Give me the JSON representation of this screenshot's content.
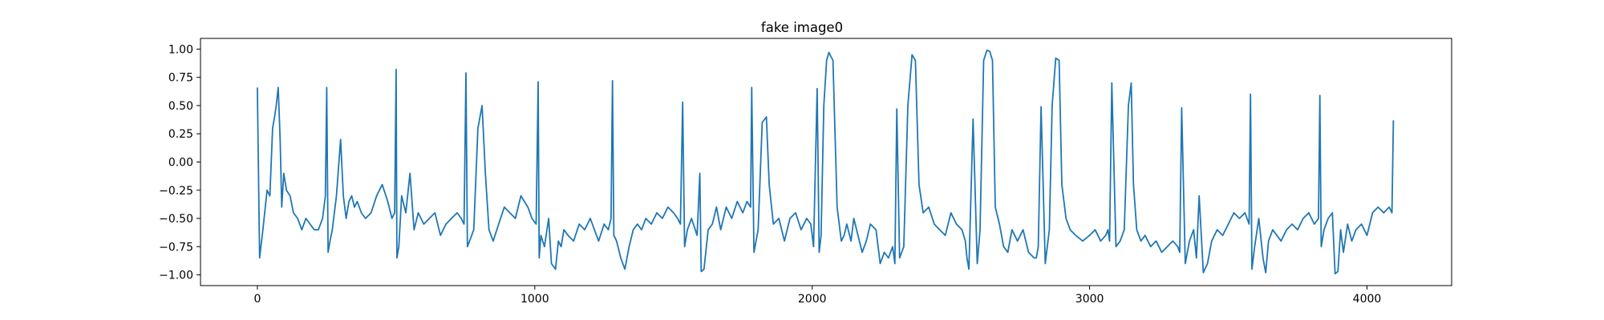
{
  "chart_data": {
    "type": "line",
    "title": "fake image0",
    "xlabel": "",
    "ylabel": "",
    "xlim": [
      -205,
      4305
    ],
    "ylim": [
      -1.095,
      1.095
    ],
    "xticks": [
      0,
      1000,
      2000,
      3000,
      4000
    ],
    "xtick_labels": [
      "0",
      "1000",
      "2000",
      "3000",
      "4000"
    ],
    "yticks": [
      -1.0,
      -0.75,
      -0.5,
      -0.25,
      0.0,
      0.25,
      0.5,
      0.75,
      1.0
    ],
    "ytick_labels": [
      "−1.00",
      "−0.75",
      "−0.50",
      "−0.25",
      "0.00",
      "0.25",
      "0.50",
      "0.75",
      "1.00"
    ],
    "grid": false,
    "line_color": "#1f77b4",
    "series": [
      {
        "x": [
          0,
          8,
          20,
          35,
          45,
          55,
          62,
          68,
          75,
          82,
          88,
          95,
          105,
          118,
          130,
          145,
          160,
          175,
          190,
          205,
          220,
          235,
          245,
          250,
          255,
          262,
          270,
          285,
          300,
          310,
          320,
          330,
          340,
          350,
          360,
          375,
          390,
          410,
          430,
          450,
          470,
          485,
          495,
          500,
          503,
          510,
          520,
          535,
          550,
          565,
          580,
          600,
          620,
          640,
          660,
          680,
          700,
          720,
          735,
          745,
          752,
          757,
          765,
          780,
          795,
          810,
          822,
          835,
          850,
          870,
          890,
          910,
          930,
          950,
          975,
          990,
          1005,
          1012,
          1016,
          1022,
          1035,
          1050,
          1060,
          1075,
          1085,
          1095,
          1105,
          1120,
          1140,
          1160,
          1180,
          1200,
          1215,
          1230,
          1250,
          1265,
          1275,
          1280,
          1285,
          1295,
          1310,
          1325,
          1340,
          1355,
          1370,
          1385,
          1400,
          1420,
          1440,
          1460,
          1480,
          1500,
          1515,
          1525,
          1533,
          1540,
          1550,
          1565,
          1585,
          1595,
          1600,
          1610,
          1625,
          1640,
          1655,
          1670,
          1690,
          1710,
          1730,
          1750,
          1765,
          1778,
          1782,
          1790,
          1805,
          1820,
          1835,
          1845,
          1860,
          1880,
          1900,
          1920,
          1940,
          1960,
          1980,
          1995,
          2005,
          2018,
          2025,
          2032,
          2042,
          2052,
          2060,
          2075,
          2090,
          2105,
          2115,
          2125,
          2140,
          2150,
          2165,
          2180,
          2195,
          2210,
          2230,
          2245,
          2260,
          2275,
          2290,
          2298,
          2305,
          2315,
          2330,
          2345,
          2360,
          2372,
          2385,
          2400,
          2420,
          2440,
          2460,
          2480,
          2500,
          2520,
          2540,
          2552,
          2558,
          2565,
          2580,
          2595,
          2605,
          2618,
          2630,
          2640,
          2650,
          2660,
          2675,
          2690,
          2705,
          2720,
          2740,
          2760,
          2780,
          2800,
          2808,
          2815,
          2825,
          2840,
          2855,
          2865,
          2878,
          2890,
          2900,
          2915,
          2930,
          2950,
          2975,
          3000,
          3020,
          3040,
          3058,
          3066,
          3072,
          3080,
          3095,
          3110,
          3125,
          3140,
          3150,
          3158,
          3170,
          3185,
          3200,
          3220,
          3240,
          3260,
          3280,
          3300,
          3318,
          3325,
          3332,
          3345,
          3360,
          3375,
          3385,
          3395,
          3410,
          3425,
          3440,
          3460,
          3480,
          3500,
          3520,
          3540,
          3560,
          3575,
          3580,
          3585,
          3595,
          3610,
          3625,
          3635,
          3645,
          3660,
          3675,
          3690,
          3710,
          3730,
          3750,
          3770,
          3790,
          3810,
          3825,
          3830,
          3835,
          3845,
          3860,
          3875,
          3885,
          3895,
          3905,
          3915,
          3930,
          3945,
          3960,
          3980,
          4000,
          4020,
          4040,
          4060,
          4080,
          4090,
          4095
        ],
        "y": [
          0.66,
          -0.85,
          -0.6,
          -0.25,
          -0.3,
          0.3,
          0.4,
          0.5,
          0.66,
          0.2,
          -0.4,
          -0.1,
          -0.25,
          -0.3,
          -0.45,
          -0.5,
          -0.6,
          -0.5,
          -0.55,
          -0.6,
          -0.6,
          -0.5,
          -0.3,
          0.66,
          -0.8,
          -0.7,
          -0.6,
          -0.3,
          0.2,
          -0.3,
          -0.5,
          -0.35,
          -0.3,
          -0.4,
          -0.35,
          -0.45,
          -0.5,
          -0.45,
          -0.3,
          -0.2,
          -0.35,
          -0.5,
          -0.45,
          0.82,
          -0.85,
          -0.75,
          -0.3,
          -0.45,
          -0.1,
          -0.6,
          -0.45,
          -0.55,
          -0.5,
          -0.45,
          -0.65,
          -0.55,
          -0.5,
          -0.45,
          -0.5,
          -0.55,
          0.79,
          -0.75,
          -0.7,
          -0.6,
          0.3,
          0.5,
          -0.1,
          -0.6,
          -0.7,
          -0.55,
          -0.4,
          -0.45,
          -0.5,
          -0.3,
          -0.4,
          -0.5,
          -0.55,
          0.71,
          -0.85,
          -0.65,
          -0.75,
          -0.5,
          -0.9,
          -0.95,
          -0.7,
          -0.75,
          -0.6,
          -0.65,
          -0.7,
          -0.55,
          -0.6,
          -0.5,
          -0.6,
          -0.7,
          -0.55,
          -0.6,
          -0.5,
          0.72,
          -0.65,
          -0.7,
          -0.85,
          -0.95,
          -0.75,
          -0.6,
          -0.55,
          -0.6,
          -0.5,
          -0.55,
          -0.45,
          -0.5,
          -0.4,
          -0.45,
          -0.5,
          -0.55,
          0.53,
          -0.75,
          -0.6,
          -0.5,
          -0.65,
          -0.1,
          -0.97,
          -0.95,
          -0.6,
          -0.55,
          -0.4,
          -0.6,
          -0.4,
          -0.5,
          -0.35,
          -0.45,
          -0.35,
          -0.4,
          0.66,
          -0.8,
          -0.6,
          0.35,
          0.4,
          -0.2,
          -0.55,
          -0.5,
          -0.7,
          -0.5,
          -0.45,
          -0.6,
          -0.5,
          -0.55,
          -0.75,
          0.65,
          -0.8,
          -0.65,
          0.5,
          0.9,
          0.97,
          0.9,
          -0.4,
          -0.7,
          -0.65,
          -0.55,
          -0.7,
          -0.5,
          -0.65,
          -0.8,
          -0.7,
          -0.55,
          -0.6,
          -0.9,
          -0.8,
          -0.85,
          -0.75,
          -0.9,
          0.47,
          -0.85,
          -0.75,
          0.5,
          0.95,
          0.9,
          -0.2,
          -0.45,
          -0.4,
          -0.55,
          -0.6,
          -0.65,
          -0.45,
          -0.55,
          -0.6,
          -0.7,
          -0.85,
          -0.95,
          0.38,
          -0.9,
          -0.6,
          0.9,
          0.99,
          0.98,
          0.9,
          -0.4,
          -0.55,
          -0.75,
          -0.8,
          -0.6,
          -0.7,
          -0.6,
          -0.8,
          -0.85,
          -0.85,
          -0.75,
          0.49,
          -0.9,
          -0.6,
          0.5,
          0.92,
          0.9,
          -0.2,
          -0.5,
          -0.6,
          -0.65,
          -0.7,
          -0.65,
          -0.6,
          -0.7,
          -0.65,
          -0.6,
          -0.7,
          0.7,
          -0.75,
          -0.7,
          -0.6,
          0.5,
          0.7,
          -0.2,
          -0.6,
          -0.7,
          -0.65,
          -0.75,
          -0.7,
          -0.8,
          -0.75,
          -0.7,
          -0.75,
          -0.8,
          0.48,
          -0.9,
          -0.7,
          -0.6,
          -0.85,
          -0.3,
          -0.98,
          -0.9,
          -0.7,
          -0.6,
          -0.65,
          -0.55,
          -0.45,
          -0.5,
          -0.45,
          -0.55,
          0.6,
          -0.95,
          -0.75,
          -0.5,
          -0.85,
          -0.98,
          -0.7,
          -0.6,
          -0.65,
          -0.7,
          -0.6,
          -0.55,
          -0.6,
          -0.5,
          -0.45,
          -0.55,
          -0.5,
          0.59,
          -0.75,
          -0.6,
          -0.5,
          -0.45,
          -0.99,
          -0.97,
          -0.6,
          -0.8,
          -0.55,
          -0.7,
          -0.6,
          -0.55,
          -0.65,
          -0.45,
          -0.4,
          -0.45,
          -0.4,
          -0.45,
          0.37
        ]
      }
    ]
  }
}
